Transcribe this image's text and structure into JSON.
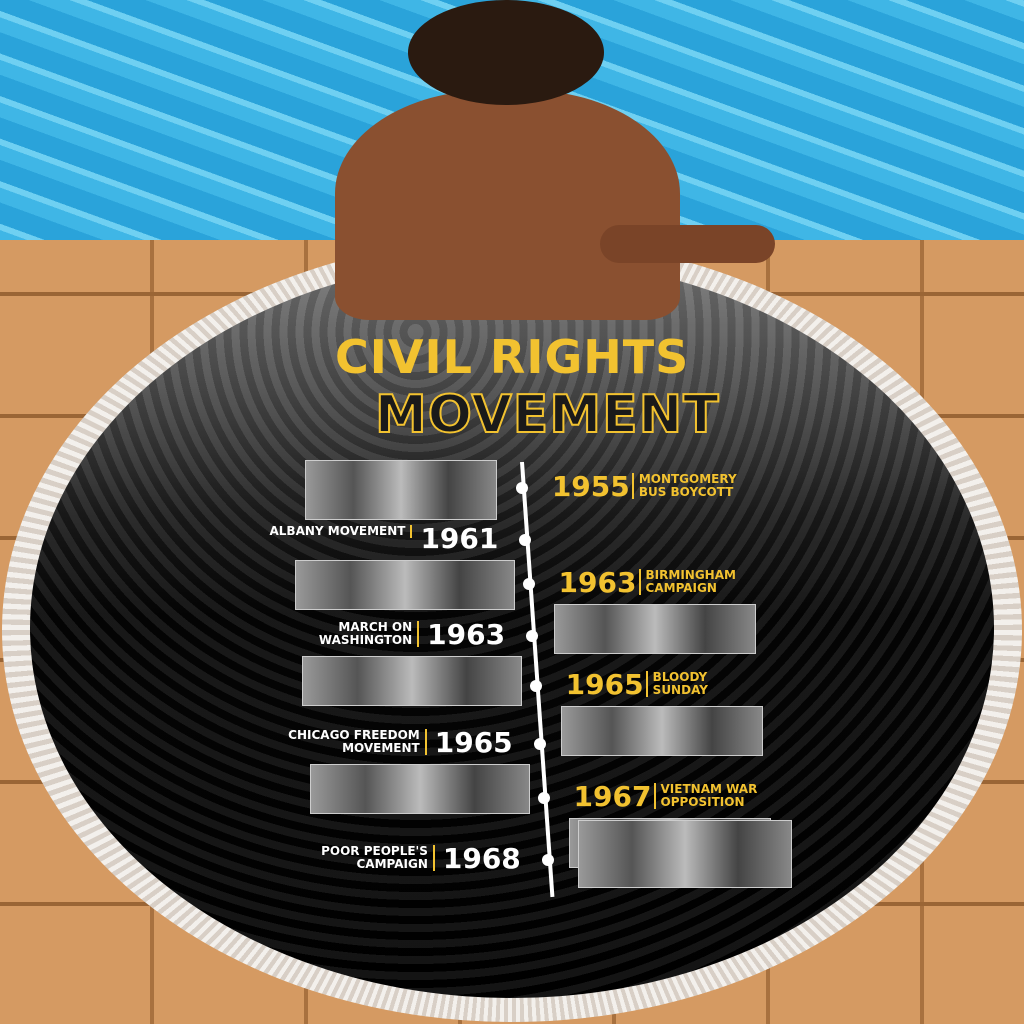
{
  "title_line1": "CIVIL RIGHTS",
  "title_line2": "MOVEMENT",
  "accent_color": "#f2c230",
  "timeline": [
    {
      "year": "1955",
      "label": "MONTGOMERY BUS BOYCOTT",
      "side": "right"
    },
    {
      "year": "1961",
      "label": "ALBANY MOVEMENT",
      "side": "left"
    },
    {
      "year": "1963",
      "label": "BIRMINGHAM CAMPAIGN",
      "side": "right"
    },
    {
      "year": "1963",
      "label": "MARCH ON WASHINGTON",
      "side": "left"
    },
    {
      "year": "1965",
      "label": "BLOODY SUNDAY",
      "side": "right"
    },
    {
      "year": "1965",
      "label": "CHICAGO FREEDOM MOVEMENT",
      "side": "left"
    },
    {
      "year": "1967",
      "label": "VIETNAM WAR OPPOSITION",
      "side": "right"
    },
    {
      "year": "1968",
      "label": "POOR PEOPLE'S CAMPAIGN",
      "side": "left"
    }
  ]
}
